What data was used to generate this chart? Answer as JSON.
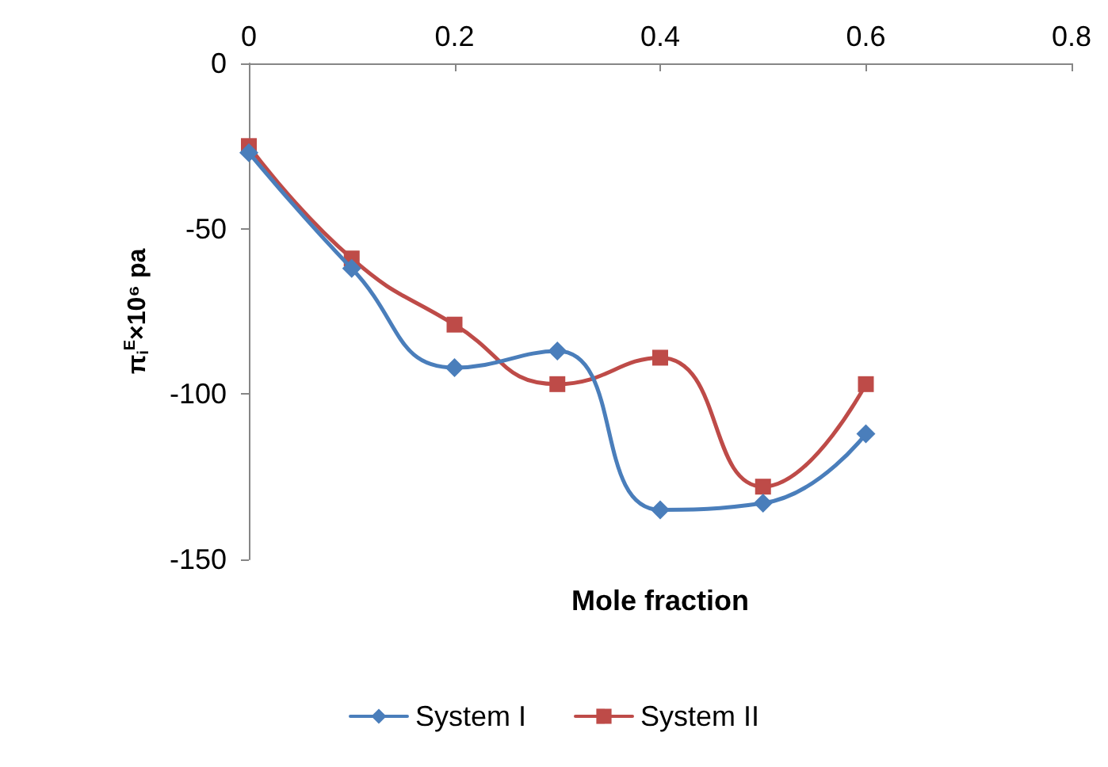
{
  "chart_data": {
    "type": "line",
    "xlabel": "Mole fraction",
    "ylabel": "π$_{i}$$^{E}$×10⁶ pa",
    "x": [
      0,
      0.1,
      0.2,
      0.3,
      0.4,
      0.5,
      0.6
    ],
    "series": [
      {
        "name": "System I",
        "color": "#4a7ebb",
        "marker": "diamond",
        "values": [
          -27,
          -62,
          -92,
          -87,
          -135,
          -133,
          -112
        ]
      },
      {
        "name": "System II",
        "color": "#be4b48",
        "marker": "square",
        "values": [
          -25,
          -59,
          -79,
          -97,
          -89,
          -128,
          -97
        ]
      }
    ],
    "xlim": [
      0,
      0.8
    ],
    "xticks": [
      0,
      0.2,
      0.4,
      0.6,
      0.8
    ],
    "ylim": [
      -150,
      0
    ],
    "yticks": [
      -150,
      -100,
      -50,
      0
    ],
    "grid": false,
    "legend": "bottom",
    "line_style": "solid"
  }
}
